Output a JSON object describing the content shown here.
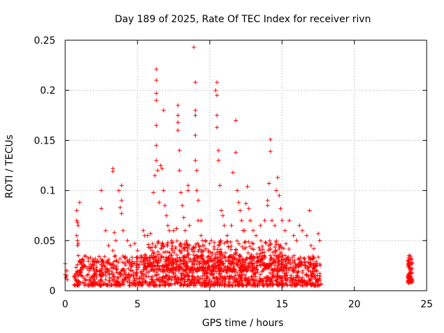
{
  "chart_data": {
    "type": "scatter",
    "title": "Day 189 of 2025, Rate Of TEC Index for receiver rivn",
    "xlabel": "GPS time / hours",
    "ylabel": "ROTI / TECUs",
    "xlim": [
      0,
      25
    ],
    "ylim": [
      0,
      0.25
    ],
    "xticks": [
      "0",
      "5",
      "10",
      "15",
      "20",
      "25"
    ],
    "yticks": [
      "0",
      "0.05",
      "0.1",
      "0.15",
      "0.2",
      "0.25"
    ],
    "grid": true,
    "marker": "+",
    "color": "#ff0000",
    "points": [
      [
        0.0,
        0.027
      ],
      [
        0.0,
        0.016
      ],
      [
        0.05,
        0.013
      ],
      [
        0.1,
        0.02
      ],
      [
        0.1,
        0.015
      ],
      [
        0.15,
        0.011
      ],
      [
        0.8,
        0.07
      ],
      [
        0.85,
        0.068
      ],
      [
        0.9,
        0.065
      ],
      [
        0.8,
        0.055
      ],
      [
        0.85,
        0.05
      ],
      [
        0.9,
        0.047
      ],
      [
        0.85,
        0.045
      ],
      [
        1.0,
        0.088
      ],
      [
        0.8,
        0.08
      ],
      [
        0.9,
        0.035
      ],
      [
        1.0,
        0.03
      ],
      [
        2.5,
        0.1
      ],
      [
        2.5,
        0.082
      ],
      [
        2.8,
        0.06
      ],
      [
        3.0,
        0.045
      ],
      [
        3.3,
        0.122
      ],
      [
        3.3,
        0.119
      ],
      [
        3.4,
        0.058
      ],
      [
        3.5,
        0.05
      ],
      [
        3.3,
        0.04
      ],
      [
        3.7,
        0.1
      ],
      [
        3.9,
        0.105
      ],
      [
        3.9,
        0.09
      ],
      [
        3.8,
        0.083
      ],
      [
        3.9,
        0.077
      ],
      [
        4.0,
        0.06
      ],
      [
        4.3,
        0.05
      ],
      [
        4.5,
        0.045
      ],
      [
        4.8,
        0.047
      ],
      [
        5.0,
        0.04
      ],
      [
        5.4,
        0.06
      ],
      [
        5.5,
        0.055
      ],
      [
        5.7,
        0.055
      ],
      [
        5.9,
        0.057
      ],
      [
        6.1,
        0.098
      ],
      [
        6.2,
        0.115
      ],
      [
        6.3,
        0.221
      ],
      [
        6.3,
        0.21
      ],
      [
        6.3,
        0.197
      ],
      [
        6.3,
        0.19
      ],
      [
        6.3,
        0.165
      ],
      [
        6.3,
        0.145
      ],
      [
        6.3,
        0.13
      ],
      [
        6.4,
        0.12
      ],
      [
        6.5,
        0.088
      ],
      [
        6.6,
        0.125
      ],
      [
        6.7,
        0.122
      ],
      [
        6.8,
        0.18
      ],
      [
        6.8,
        0.1
      ],
      [
        6.9,
        0.085
      ],
      [
        7.0,
        0.075
      ],
      [
        7.1,
        0.065
      ],
      [
        7.2,
        0.06
      ],
      [
        7.5,
        0.06
      ],
      [
        7.7,
        0.062
      ],
      [
        7.8,
        0.185
      ],
      [
        7.8,
        0.175
      ],
      [
        7.8,
        0.168
      ],
      [
        7.8,
        0.16
      ],
      [
        7.9,
        0.14
      ],
      [
        7.9,
        0.12
      ],
      [
        8.0,
        0.098
      ],
      [
        8.1,
        0.085
      ],
      [
        8.2,
        0.073
      ],
      [
        8.3,
        0.06
      ],
      [
        8.5,
        0.105
      ],
      [
        8.5,
        0.1
      ],
      [
        8.6,
        0.065
      ],
      [
        8.9,
        0.243
      ],
      [
        9.0,
        0.208
      ],
      [
        9.0,
        0.18
      ],
      [
        9.0,
        0.175
      ],
      [
        9.0,
        0.155
      ],
      [
        9.0,
        0.13
      ],
      [
        9.1,
        0.12
      ],
      [
        9.1,
        0.1
      ],
      [
        9.2,
        0.09
      ],
      [
        9.2,
        0.07
      ],
      [
        9.4,
        0.07
      ],
      [
        9.4,
        0.055
      ],
      [
        9.5,
        0.05
      ],
      [
        9.6,
        0.045
      ],
      [
        9.7,
        0.05
      ],
      [
        9.9,
        0.04
      ],
      [
        10.1,
        0.05
      ],
      [
        10.4,
        0.2
      ],
      [
        10.5,
        0.208
      ],
      [
        10.5,
        0.195
      ],
      [
        10.5,
        0.175
      ],
      [
        10.5,
        0.163
      ],
      [
        10.6,
        0.14
      ],
      [
        10.6,
        0.13
      ],
      [
        10.7,
        0.105
      ],
      [
        10.8,
        0.08
      ],
      [
        10.9,
        0.075
      ],
      [
        11.0,
        0.065
      ],
      [
        11.2,
        0.055
      ],
      [
        11.5,
        0.065
      ],
      [
        11.6,
        0.118
      ],
      [
        11.8,
        0.17
      ],
      [
        11.8,
        0.138
      ],
      [
        11.9,
        0.1
      ],
      [
        12.0,
        0.088
      ],
      [
        12.1,
        0.08
      ],
      [
        12.2,
        0.07
      ],
      [
        12.3,
        0.06
      ],
      [
        12.4,
        0.06
      ],
      [
        12.5,
        0.087
      ],
      [
        12.6,
        0.104
      ],
      [
        12.7,
        0.082
      ],
      [
        12.8,
        0.07
      ],
      [
        13.0,
        0.06
      ],
      [
        13.2,
        0.055
      ],
      [
        13.5,
        0.065
      ],
      [
        13.8,
        0.07
      ],
      [
        14.0,
        0.09
      ],
      [
        14.0,
        0.085
      ],
      [
        14.1,
        0.107
      ],
      [
        14.2,
        0.139
      ],
      [
        14.2,
        0.151
      ],
      [
        14.3,
        0.07
      ],
      [
        14.5,
        0.065
      ],
      [
        14.6,
        0.1
      ],
      [
        14.7,
        0.113
      ],
      [
        14.8,
        0.095
      ],
      [
        14.9,
        0.082
      ],
      [
        15.0,
        0.07
      ],
      [
        15.2,
        0.06
      ],
      [
        15.5,
        0.07
      ],
      [
        15.8,
        0.055
      ],
      [
        16.0,
        0.05
      ],
      [
        16.2,
        0.065
      ],
      [
        16.4,
        0.06
      ],
      [
        16.7,
        0.055
      ],
      [
        16.9,
        0.08
      ],
      [
        17.0,
        0.045
      ],
      [
        17.2,
        0.042
      ],
      [
        17.5,
        0.057
      ],
      [
        17.6,
        0.05
      ],
      [
        23.7,
        0.03
      ],
      [
        23.8,
        0.035
      ],
      [
        23.9,
        0.032
      ],
      [
        23.75,
        0.025
      ],
      [
        23.85,
        0.02
      ],
      [
        23.9,
        0.017
      ],
      [
        23.8,
        0.012
      ],
      [
        23.9,
        0.009
      ],
      [
        24.0,
        0.022
      ],
      [
        23.7,
        0.015
      ],
      [
        24.0,
        0.028
      ]
    ],
    "dense_band": {
      "x_range": [
        0.6,
        17.7
      ],
      "y_range": [
        0.005,
        0.035
      ]
    },
    "dense_band_2": {
      "x_range": [
        5.5,
        15.5
      ],
      "y_range": [
        0.02,
        0.05
      ]
    },
    "dense_band_3": {
      "x_range": [
        23.7,
        24.0
      ],
      "y_range": [
        0.008,
        0.035
      ]
    }
  }
}
